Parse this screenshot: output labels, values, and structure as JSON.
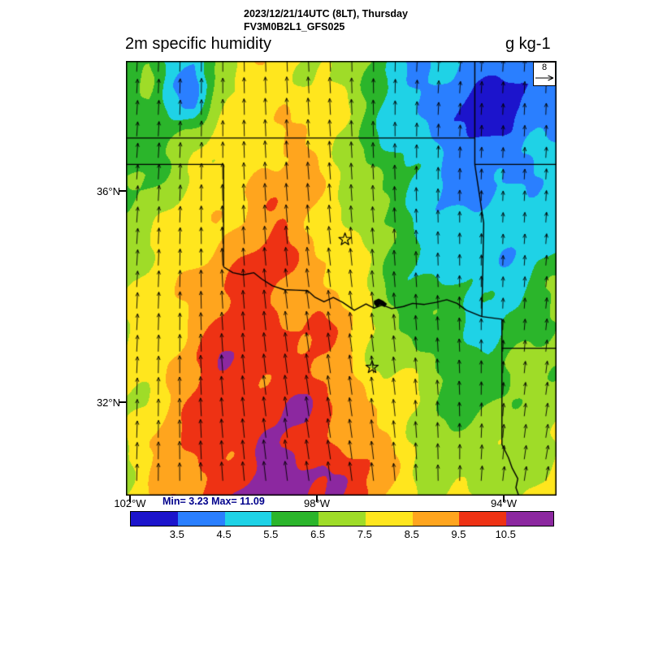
{
  "header": {
    "date_line": "2023/12/21/14UTC (8LT), Thursday",
    "model_line": "FV3M0B2L1_GFS025",
    "variable": "2m specific humidity",
    "units": "g kg-1"
  },
  "axes": {
    "lat_ticks": [
      {
        "label": "36°N",
        "value": 36
      },
      {
        "label": "32°N",
        "value": 32
      }
    ],
    "lon_ticks": [
      {
        "label": "102°W",
        "value": -102
      },
      {
        "label": "98°W",
        "value": -98
      },
      {
        "label": "94°W",
        "value": -94
      }
    ]
  },
  "stats": {
    "text": "Min= 3.23 Max= 11.09",
    "min": 3.23,
    "max": 11.09
  },
  "wind_reference": {
    "label": "8"
  },
  "colorbar": {
    "tick_labels": [
      "3.5",
      "4.5",
      "5.5",
      "6.5",
      "7.5",
      "8.5",
      "9.5",
      "10.5"
    ],
    "levels": [
      3.5,
      4.5,
      5.5,
      6.5,
      7.5,
      8.5,
      9.5,
      10.5
    ],
    "colors": [
      "#1c14cc",
      "#2a7fff",
      "#1fd2e6",
      "#2bb52b",
      "#9fdc28",
      "#ffe61e",
      "#ffa51e",
      "#ee3214",
      "#8c28a0"
    ]
  },
  "chart_data": {
    "type": "heatmap",
    "title": "2m specific humidity",
    "units": "g kg-1",
    "domain": {
      "lon": [
        -102.09,
        -92.87
      ],
      "lat": [
        30.23,
        38.46
      ]
    },
    "humidity_grid_gkg": [
      [
        5.5,
        6.0,
        5.0,
        4.6,
        6.5,
        7.5,
        8.0,
        8.2,
        7.8,
        7.4,
        7.0,
        6.2,
        5.2,
        4.8,
        4.5,
        4.3,
        4.1,
        4.2,
        4.4,
        4.6
      ],
      [
        5.8,
        6.2,
        4.8,
        4.2,
        6.8,
        7.6,
        8.2,
        8.4,
        7.9,
        7.4,
        6.8,
        6.0,
        4.9,
        4.4,
        4.0,
        3.6,
        3.4,
        3.3,
        3.6,
        4.0
      ],
      [
        6.0,
        6.4,
        5.2,
        5.0,
        7.0,
        7.8,
        8.4,
        8.5,
        8.0,
        7.5,
        7.0,
        6.2,
        5.0,
        4.3,
        3.8,
        3.4,
        3.2,
        3.2,
        3.5,
        3.9
      ],
      [
        5.6,
        6.0,
        6.2,
        6.6,
        7.2,
        8.0,
        8.5,
        8.6,
        8.2,
        7.6,
        7.0,
        6.1,
        5.2,
        4.6,
        4.0,
        3.6,
        3.3,
        3.4,
        3.8,
        4.2
      ],
      [
        5.3,
        6.2,
        6.8,
        7.2,
        7.6,
        8.2,
        8.6,
        8.8,
        8.4,
        7.8,
        7.0,
        6.2,
        5.4,
        4.8,
        4.4,
        4.0,
        3.8,
        4.0,
        4.4,
        4.8
      ],
      [
        6.5,
        6.8,
        7.0,
        7.4,
        7.8,
        8.4,
        8.8,
        8.9,
        8.5,
        8.0,
        7.2,
        6.4,
        5.6,
        5.0,
        4.5,
        4.2,
        4.1,
        4.3,
        4.7,
        5.1
      ],
      [
        6.8,
        7.0,
        7.2,
        7.6,
        8.0,
        8.6,
        9.0,
        9.0,
        8.6,
        8.0,
        7.4,
        6.6,
        5.8,
        5.2,
        4.7,
        4.4,
        4.3,
        4.5,
        4.9,
        5.3
      ],
      [
        7.0,
        7.2,
        7.5,
        7.8,
        8.4,
        8.8,
        9.2,
        9.2,
        8.8,
        8.2,
        7.4,
        6.6,
        5.8,
        5.3,
        4.9,
        4.6,
        4.5,
        4.7,
        5.1,
        5.5
      ],
      [
        7.0,
        7.4,
        7.8,
        8.2,
        8.8,
        9.2,
        9.4,
        9.4,
        9.0,
        8.4,
        7.6,
        6.8,
        6.0,
        5.5,
        5.1,
        4.8,
        4.7,
        4.9,
        5.3,
        5.7
      ],
      [
        7.2,
        7.5,
        8.0,
        8.6,
        9.2,
        9.5,
        9.6,
        9.5,
        9.2,
        8.6,
        7.8,
        7.0,
        6.2,
        5.7,
        5.3,
        5.0,
        4.9,
        5.1,
        5.5,
        5.9
      ],
      [
        7.2,
        7.6,
        8.2,
        8.8,
        9.4,
        9.7,
        9.8,
        9.6,
        9.3,
        8.8,
        8.0,
        7.0,
        6.4,
        5.9,
        5.5,
        5.3,
        5.2,
        5.4,
        5.7,
        6.1
      ],
      [
        7.3,
        7.8,
        8.4,
        9.0,
        9.6,
        9.9,
        9.9,
        9.7,
        9.4,
        9.0,
        8.2,
        7.2,
        6.6,
        6.1,
        5.7,
        5.5,
        5.4,
        5.6,
        5.9,
        6.3
      ],
      [
        7.4,
        7.9,
        8.5,
        9.2,
        9.8,
        10.0,
        10.0,
        9.8,
        9.5,
        9.1,
        8.4,
        7.6,
        6.8,
        6.3,
        5.9,
        5.7,
        5.6,
        5.8,
        6.1,
        6.5
      ],
      [
        7.4,
        8.0,
        8.6,
        9.3,
        9.9,
        10.1,
        10.1,
        9.9,
        9.6,
        9.2,
        8.6,
        7.8,
        7.2,
        6.7,
        6.3,
        6.1,
        6.0,
        6.2,
        6.4,
        6.8
      ],
      [
        7.5,
        8.0,
        8.7,
        9.4,
        10.0,
        10.2,
        10.2,
        10.0,
        9.7,
        9.3,
        8.8,
        8.0,
        7.4,
        6.9,
        6.5,
        6.3,
        6.2,
        6.4,
        6.6,
        7.0
      ],
      [
        7.5,
        8.1,
        8.8,
        9.4,
        9.9,
        10.1,
        10.2,
        10.3,
        10.1,
        9.7,
        9.1,
        8.3,
        7.6,
        7.1,
        6.7,
        6.5,
        6.4,
        6.6,
        6.8,
        7.2
      ],
      [
        7.6,
        8.2,
        8.8,
        9.4,
        10.0,
        10.2,
        10.3,
        10.4,
        10.2,
        9.8,
        9.2,
        8.5,
        7.8,
        7.3,
        6.9,
        6.7,
        6.6,
        6.8,
        7.0,
        7.4
      ],
      [
        7.6,
        8.2,
        8.9,
        9.5,
        10.0,
        10.3,
        10.5,
        10.6,
        10.4,
        10.0,
        9.4,
        8.7,
        8.0,
        7.5,
        7.1,
        6.9,
        6.8,
        7.0,
        7.2,
        7.6
      ],
      [
        7.7,
        8.3,
        8.9,
        9.5,
        10.0,
        10.3,
        10.5,
        10.7,
        10.8,
        10.5,
        9.9,
        9.1,
        8.3,
        7.7,
        7.3,
        7.1,
        7.0,
        7.2,
        7.4,
        7.8
      ],
      [
        7.7,
        8.3,
        9.0,
        9.6,
        10.1,
        10.4,
        10.7,
        10.9,
        11.0,
        10.7,
        10.0,
        9.2,
        8.4,
        7.8,
        7.5,
        7.3,
        7.1,
        7.3,
        7.5,
        7.9
      ]
    ],
    "wind_ms": {
      "u": [
        [
          0.3,
          0.2,
          0.0,
          -0.2,
          -0.3,
          0.0,
          0.3,
          0.4,
          0.3,
          0.2
        ],
        [
          0.4,
          0.2,
          0.0,
          -0.3,
          -0.4,
          -0.2,
          0.2,
          0.3,
          0.2,
          0.2
        ],
        [
          0.5,
          0.3,
          0.0,
          -0.4,
          -0.5,
          -0.3,
          0.0,
          0.2,
          0.2,
          0.3
        ],
        [
          0.5,
          0.3,
          -0.2,
          -0.5,
          -0.6,
          -0.4,
          -0.2,
          0.0,
          0.2,
          0.3
        ],
        [
          0.5,
          0.2,
          -0.3,
          -0.6,
          -0.8,
          -0.6,
          -0.3,
          0.0,
          0.2,
          0.4
        ],
        [
          0.4,
          0.2,
          -0.4,
          -0.8,
          -1.0,
          -0.8,
          -0.4,
          -0.1,
          0.2,
          0.5
        ],
        [
          0.4,
          0.1,
          -0.5,
          -0.9,
          -1.1,
          -0.9,
          -0.5,
          -0.2,
          0.3,
          0.6
        ],
        [
          0.3,
          0.0,
          -0.6,
          -1.0,
          -1.2,
          -1.0,
          -0.6,
          -0.2,
          0.4,
          0.8
        ],
        [
          0.3,
          0.0,
          -0.6,
          -1.0,
          -1.2,
          -1.0,
          -0.5,
          0.0,
          0.6,
          1.0
        ],
        [
          0.2,
          0.0,
          -0.5,
          -0.9,
          -1.1,
          -0.9,
          -0.4,
          0.2,
          0.8,
          1.2
        ]
      ],
      "v": [
        [
          5.5,
          5.8,
          6.0,
          6.5,
          6.5,
          6.0,
          5.5,
          5.0,
          5.0,
          5.2
        ],
        [
          5.8,
          6.0,
          6.3,
          6.8,
          6.8,
          6.2,
          5.5,
          4.8,
          4.6,
          4.8
        ],
        [
          6.0,
          6.2,
          6.5,
          7.0,
          7.0,
          6.4,
          5.5,
          4.5,
          4.2,
          4.5
        ],
        [
          6.2,
          6.5,
          6.8,
          7.2,
          7.2,
          6.6,
          5.6,
          4.4,
          4.0,
          4.3
        ],
        [
          6.4,
          6.7,
          7.0,
          7.4,
          7.4,
          6.8,
          5.8,
          4.5,
          4.0,
          4.2
        ],
        [
          6.5,
          6.9,
          7.2,
          7.6,
          7.6,
          7.0,
          6.0,
          4.8,
          4.2,
          4.4
        ],
        [
          6.6,
          7.0,
          7.4,
          7.8,
          7.8,
          7.2,
          6.2,
          5.2,
          4.6,
          4.8
        ],
        [
          6.8,
          7.2,
          7.6,
          8.0,
          8.0,
          7.4,
          6.5,
          5.6,
          5.0,
          5.2
        ],
        [
          6.8,
          7.3,
          7.7,
          8.0,
          8.0,
          7.5,
          6.8,
          6.0,
          5.5,
          5.6
        ],
        [
          6.8,
          7.3,
          7.7,
          8.0,
          8.0,
          7.6,
          7.0,
          6.4,
          6.0,
          6.0
        ]
      ],
      "reference_ms": 8
    },
    "stars_lonlat": [
      [
        -97.4,
        35.08
      ],
      [
        -96.82,
        32.66
      ]
    ],
    "borders_lonlat": [
      [
        [
          -102.09,
          37.0
        ],
        [
          -94.62,
          37.0
        ]
      ],
      [
        [
          -94.62,
          38.46
        ],
        [
          -94.62,
          37.0
        ]
      ],
      [
        [
          -94.62,
          37.0
        ],
        [
          -94.62,
          36.5
        ],
        [
          -94.43,
          35.39
        ],
        [
          -94.47,
          33.62
        ]
      ],
      [
        [
          -94.62,
          36.5
        ],
        [
          -92.87,
          36.5
        ]
      ],
      [
        [
          -102.09,
          36.5
        ],
        [
          -100.0,
          36.5
        ]
      ],
      [
        [
          -100.0,
          36.5
        ],
        [
          -100.0,
          34.56
        ]
      ],
      [
        [
          -100.0,
          34.56
        ],
        [
          -99.8,
          34.45
        ],
        [
          -99.58,
          34.41
        ],
        [
          -99.35,
          34.45
        ],
        [
          -99.18,
          34.33
        ],
        [
          -98.95,
          34.2
        ],
        [
          -98.7,
          34.13
        ],
        [
          -98.45,
          34.12
        ],
        [
          -98.2,
          34.11
        ],
        [
          -98.05,
          33.99
        ],
        [
          -97.85,
          33.9
        ],
        [
          -97.65,
          33.98
        ],
        [
          -97.45,
          33.89
        ],
        [
          -97.2,
          33.74
        ],
        [
          -96.95,
          33.86
        ],
        [
          -96.78,
          33.78
        ],
        [
          -96.6,
          33.84
        ],
        [
          -96.4,
          33.77
        ],
        [
          -96.15,
          33.81
        ],
        [
          -95.95,
          33.87
        ],
        [
          -95.7,
          33.85
        ],
        [
          -95.45,
          33.89
        ],
        [
          -95.22,
          33.94
        ],
        [
          -95.0,
          33.87
        ],
        [
          -94.8,
          33.74
        ],
        [
          -94.47,
          33.62
        ]
      ],
      [
        [
          -94.47,
          33.62
        ],
        [
          -94.04,
          33.57
        ],
        [
          -94.04,
          31.2
        ],
        [
          -93.9,
          30.95
        ],
        [
          -93.82,
          30.75
        ],
        [
          -93.7,
          30.55
        ],
        [
          -93.74,
          30.38
        ],
        [
          -93.68,
          30.23
        ]
      ],
      [
        [
          -94.04,
          33.02
        ],
        [
          -92.87,
          33.02
        ]
      ]
    ],
    "lake_lonlat": [
      [
        -96.78,
        33.92
      ],
      [
        -96.68,
        33.96
      ],
      [
        -96.58,
        33.92
      ],
      [
        -96.5,
        33.86
      ],
      [
        -96.55,
        33.8
      ],
      [
        -96.65,
        33.84
      ],
      [
        -96.72,
        33.8
      ],
      [
        -96.78,
        33.86
      ]
    ]
  }
}
